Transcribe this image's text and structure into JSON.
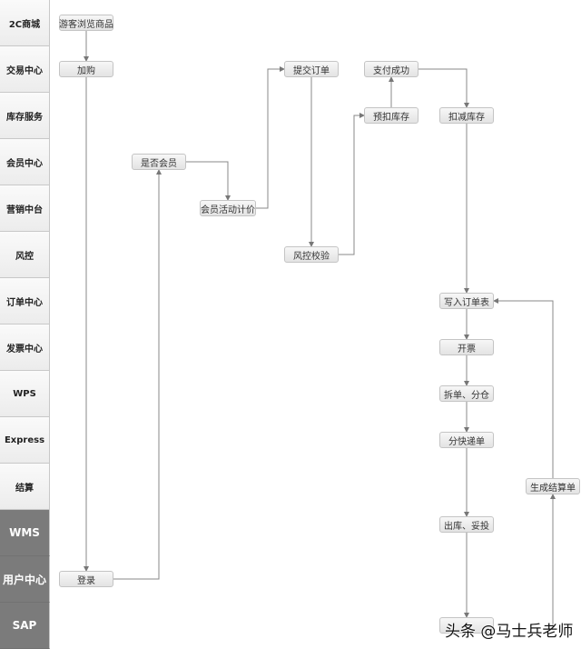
{
  "lanes": [
    {
      "label": "2C商城",
      "dark": false
    },
    {
      "label": "交易中心",
      "dark": false
    },
    {
      "label": "库存服务",
      "dark": false
    },
    {
      "label": "会员中心",
      "dark": false
    },
    {
      "label": "营销中台",
      "dark": false
    },
    {
      "label": "风控",
      "dark": false
    },
    {
      "label": "订单中心",
      "dark": false
    },
    {
      "label": "发票中心",
      "dark": false
    },
    {
      "label": "WPS",
      "dark": false
    },
    {
      "label": "Express",
      "dark": false
    },
    {
      "label": "结算",
      "dark": false
    },
    {
      "label": "WMS",
      "dark": true
    },
    {
      "label": "用户中心",
      "dark": true
    },
    {
      "label": "SAP",
      "dark": true
    }
  ],
  "nodes": {
    "browse": "游客浏览商品",
    "cart": "加购",
    "login": "登录",
    "is_member": "是否会员",
    "member_price": "会员活动计价",
    "submit_order": "提交订单",
    "risk_check": "风控校验",
    "pre_deduct": "预扣库存",
    "pay_success": "支付成功",
    "deduct_stock": "扣减库存",
    "write_order": "写入订单表",
    "invoice": "开票",
    "split": "拆单、分仓",
    "express_split": "分快递单",
    "outbound": "出库、妥投",
    "settlement": "生成结算单",
    "sap_node": ""
  },
  "watermark": "头条 @马士兵老师"
}
